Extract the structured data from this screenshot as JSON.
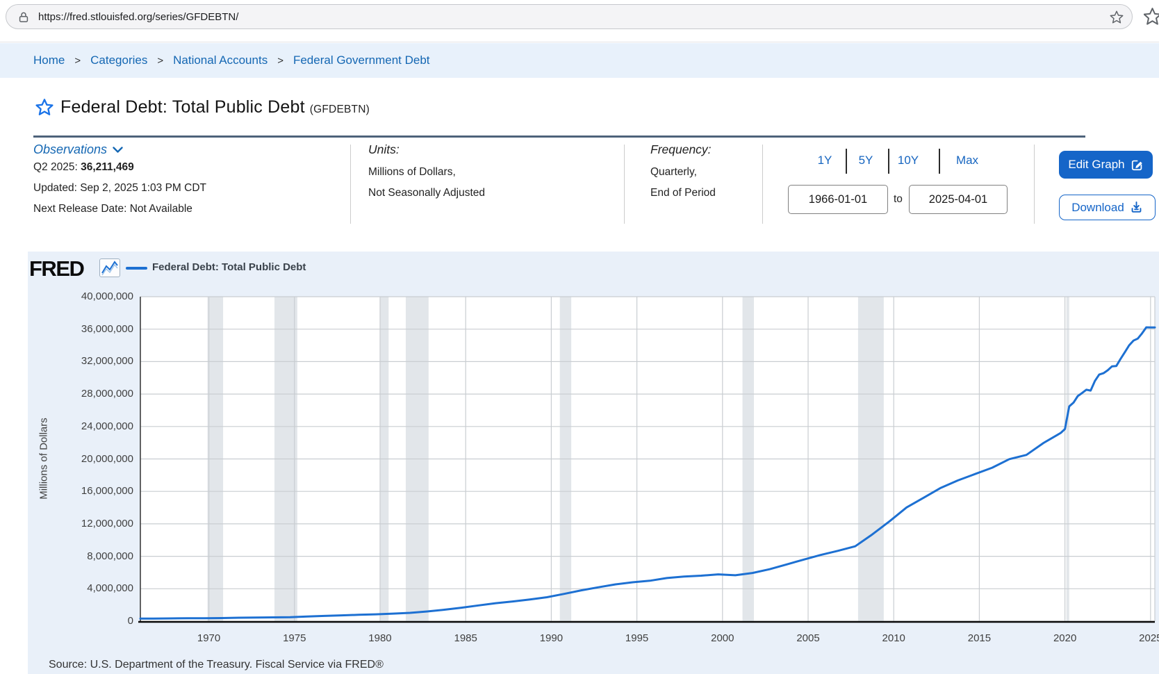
{
  "browser": {
    "url": "https://fred.stlouisfed.org/series/GFDEBTN/"
  },
  "breadcrumb": {
    "separator": ">",
    "items": [
      "Home",
      "Categories",
      "National Accounts",
      "Federal Government Debt"
    ]
  },
  "series_header": {
    "title": "Federal Debt: Total Public Debt",
    "series_id": "(GFDEBTN)"
  },
  "meta": {
    "observations": {
      "label": "Observations",
      "period_label": "Q2 2025: ",
      "value": "36,211,469",
      "updated": "Updated: Sep 2, 2025 1:03 PM CDT",
      "next_release": "Next Release Date: Not Available"
    },
    "units": {
      "label": "Units:",
      "lines": [
        "Millions of Dollars,",
        "Not Seasonally Adjusted"
      ]
    },
    "frequency": {
      "label": "Frequency:",
      "lines": [
        "Quarterly,",
        "End of Period"
      ]
    },
    "range": {
      "buttons": [
        "1Y",
        "5Y",
        "10Y",
        "Max"
      ],
      "start_date": "1966-01-01",
      "to_label": "to",
      "end_date": "2025-04-01"
    },
    "actions": {
      "edit_graph": "Edit Graph",
      "download": "Download"
    }
  },
  "chart": {
    "logo": "FRED",
    "legend": "Federal Debt: Total Public Debt",
    "source": "Source: U.S. Department of the Treasury. Fiscal Service via FRED®"
  },
  "colors": {
    "series_line": "#1d70d2",
    "recession_band": "#e2e6ea",
    "gridline": "#c9cdd1",
    "link_blue": "#1467b3",
    "button_blue": "#1565c8",
    "chart_background": "#e9f0f9",
    "breadcrumb_background": "#e8f1fb",
    "title_divider": "#4e637a"
  },
  "chart_data": {
    "type": "line",
    "title": "Federal Debt: Total Public Debt",
    "xlabel": "",
    "ylabel": "Millions of Dollars",
    "legend_position": "top-left",
    "grid": true,
    "xlim": [
      1966.0,
      2025.25
    ],
    "ylim": [
      0,
      40000000
    ],
    "x_ticks": [
      1970,
      1975,
      1980,
      1985,
      1990,
      1995,
      2000,
      2005,
      2010,
      2015,
      2020,
      2025
    ],
    "y_ticks": [
      0,
      4000000,
      8000000,
      12000000,
      16000000,
      20000000,
      24000000,
      28000000,
      32000000,
      36000000,
      40000000
    ],
    "recessions": [
      [
        1969.917,
        1970.833
      ],
      [
        1973.833,
        1975.167
      ],
      [
        1980.0,
        1980.5
      ],
      [
        1981.5,
        1982.833
      ],
      [
        1990.5,
        1991.167
      ],
      [
        2001.167,
        2001.833
      ],
      [
        2007.917,
        2009.417
      ],
      [
        2020.083,
        2020.25
      ]
    ],
    "series": [
      {
        "name": "Federal Debt: Total Public Debt",
        "units": "Millions of Dollars",
        "points": [
          [
            1966.0,
            320999
          ],
          [
            1966.75,
            329319
          ],
          [
            1967.75,
            344663
          ],
          [
            1968.75,
            358029
          ],
          [
            1969.75,
            368226
          ],
          [
            1970.75,
            389158
          ],
          [
            1971.75,
            424131
          ],
          [
            1972.75,
            449298
          ],
          [
            1973.75,
            469898
          ],
          [
            1974.75,
            492665
          ],
          [
            1975.75,
            576649
          ],
          [
            1976.75,
            653544
          ],
          [
            1977.75,
            718943
          ],
          [
            1978.75,
            789207
          ],
          [
            1979.75,
            845120
          ],
          [
            1980.75,
            930210
          ],
          [
            1981.75,
            1028729
          ],
          [
            1982.75,
            1197073
          ],
          [
            1983.75,
            1410702
          ],
          [
            1984.75,
            1662966
          ],
          [
            1985.75,
            1945941
          ],
          [
            1986.75,
            2214835
          ],
          [
            1987.75,
            2431715
          ],
          [
            1988.75,
            2684392
          ],
          [
            1989.75,
            2952994
          ],
          [
            1990.75,
            3364820
          ],
          [
            1991.75,
            3801698
          ],
          [
            1992.75,
            4177009
          ],
          [
            1993.75,
            4535687
          ],
          [
            1994.75,
            4800150
          ],
          [
            1995.75,
            4988665
          ],
          [
            1996.75,
            5323172
          ],
          [
            1997.75,
            5502388
          ],
          [
            1998.75,
            5614217
          ],
          [
            1999.75,
            5776091
          ],
          [
            2000.75,
            5662216
          ],
          [
            2001.75,
            5943439
          ],
          [
            2002.75,
            6405707
          ],
          [
            2003.75,
            7001312
          ],
          [
            2004.75,
            7596143
          ],
          [
            2005.75,
            8170424
          ],
          [
            2006.75,
            8680224
          ],
          [
            2007.75,
            9229172
          ],
          [
            2008.75,
            10699805
          ],
          [
            2009.75,
            12311350
          ],
          [
            2010.75,
            14025215
          ],
          [
            2011.75,
            15222940
          ],
          [
            2012.75,
            16432730
          ],
          [
            2013.75,
            17351971
          ],
          [
            2014.75,
            18141444
          ],
          [
            2015.75,
            18922179
          ],
          [
            2016.75,
            19976827
          ],
          [
            2017.75,
            20492747
          ],
          [
            2018.75,
            21974096
          ],
          [
            2019.75,
            23201380
          ],
          [
            2020.0,
            23686914
          ],
          [
            2020.25,
            26477561
          ],
          [
            2020.5,
            26945391
          ],
          [
            2020.75,
            27747798
          ],
          [
            2021.0,
            28132570
          ],
          [
            2021.25,
            28529436
          ],
          [
            2021.5,
            28428919
          ],
          [
            2021.75,
            29617215
          ],
          [
            2022.0,
            30401205
          ],
          [
            2022.25,
            30569433
          ],
          [
            2022.5,
            30928912
          ],
          [
            2022.75,
            31419689
          ],
          [
            2023.0,
            31458438
          ],
          [
            2023.25,
            32332274
          ],
          [
            2023.5,
            33167334
          ],
          [
            2023.75,
            34001494
          ],
          [
            2024.0,
            34586500
          ],
          [
            2024.25,
            34832600
          ],
          [
            2024.5,
            35464674
          ],
          [
            2024.75,
            36218605
          ],
          [
            2025.0,
            36214270
          ],
          [
            2025.25,
            36211469
          ]
        ]
      }
    ]
  }
}
